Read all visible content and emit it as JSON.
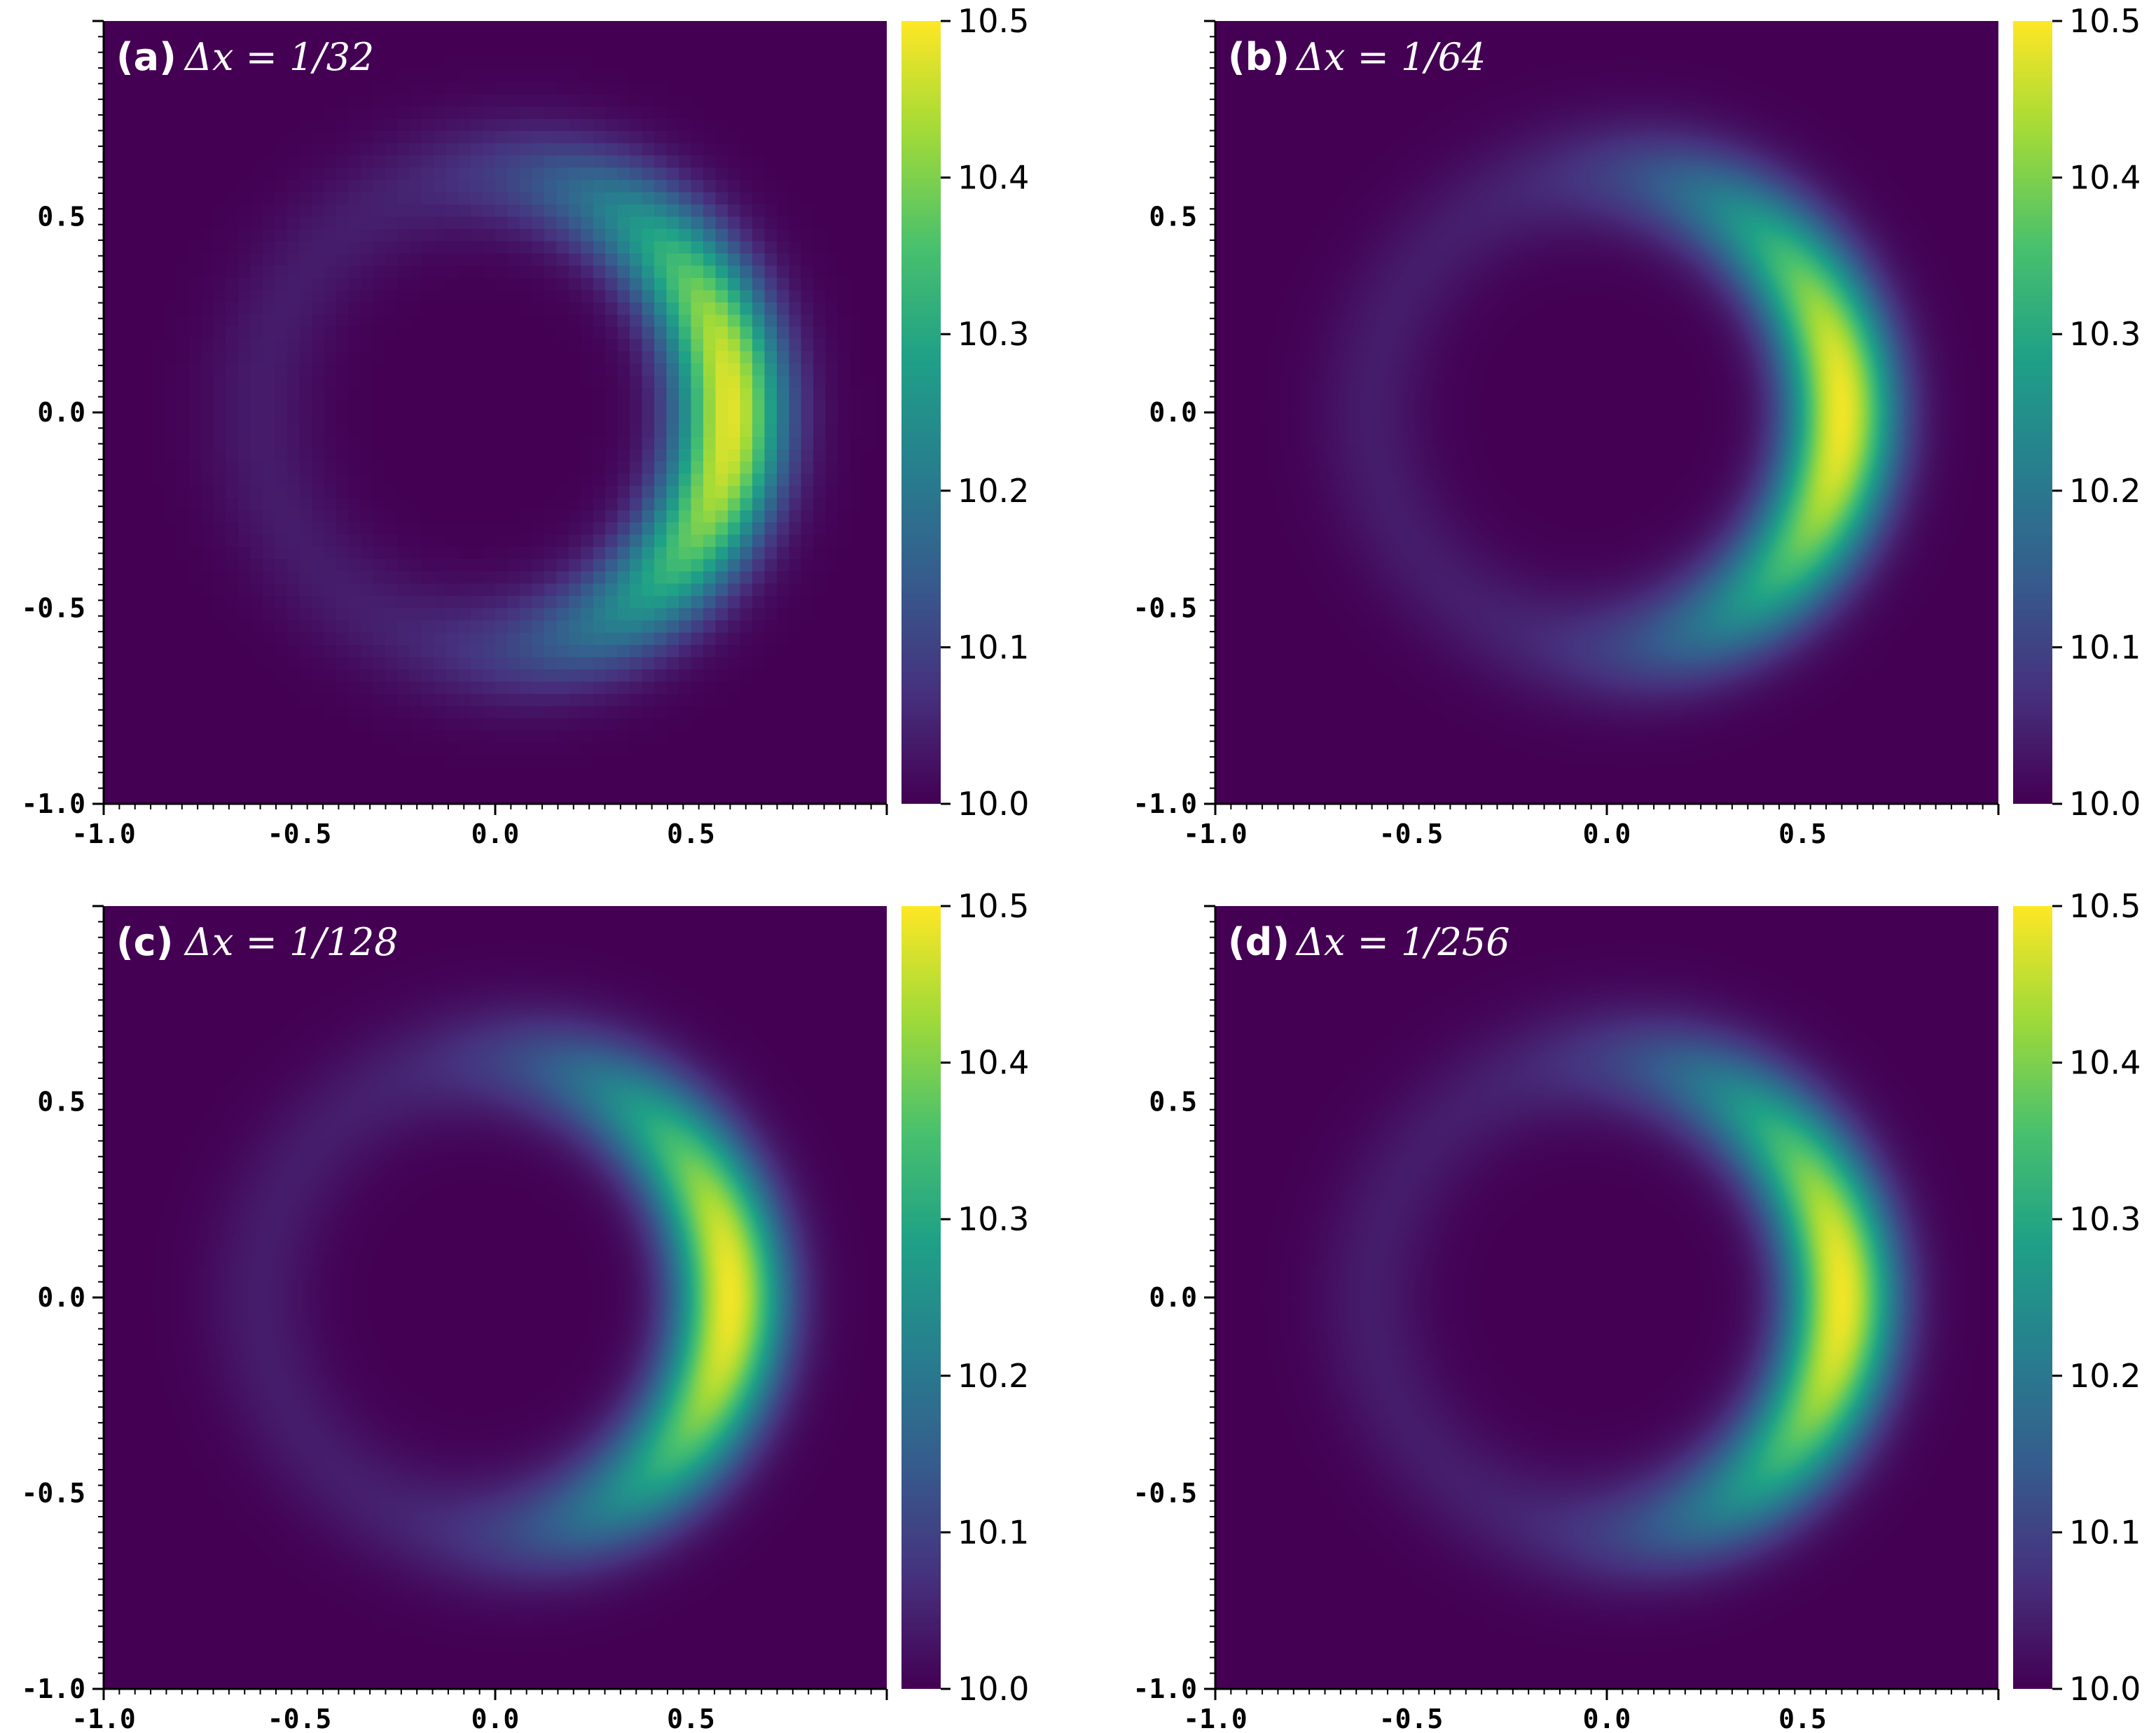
{
  "chart_data": [
    {
      "type": "heatmap",
      "panel_label": "(a)",
      "title": "Δx = 1/32",
      "grid_spacing": "1/32",
      "xlim": [
        -1.0,
        1.0
      ],
      "ylim": [
        -1.0,
        1.0
      ],
      "x_ticks": [
        "-1.0",
        "-0.5",
        "0.0",
        "0.5"
      ],
      "y_ticks": [
        "-1.0",
        "-0.5",
        "0.0",
        "0.5"
      ],
      "colorbar": {
        "min": 10.0,
        "max": 10.5,
        "ticks": [
          "10.0",
          "10.1",
          "10.2",
          "10.3",
          "10.4",
          "10.5"
        ],
        "colormap": "viridis"
      },
      "field": {
        "background": 10.0,
        "ring_center": [
          0.0,
          0.0
        ],
        "ring_radius": 0.6,
        "ring_width": 0.14,
        "ring_base": 0.08,
        "peak_value": 10.48,
        "peak_location": [
          0.6,
          0.0
        ]
      }
    },
    {
      "type": "heatmap",
      "panel_label": "(b)",
      "title": "Δx = 1/64",
      "grid_spacing": "1/64",
      "xlim": [
        -1.0,
        1.0
      ],
      "ylim": [
        -1.0,
        1.0
      ],
      "x_ticks": [
        "-1.0",
        "-0.5",
        "0.0",
        "0.5"
      ],
      "y_ticks": [
        "-1.0",
        "-0.5",
        "0.0",
        "0.5"
      ],
      "colorbar": {
        "min": 10.0,
        "max": 10.5,
        "ticks": [
          "10.0",
          "10.1",
          "10.2",
          "10.3",
          "10.4",
          "10.5"
        ],
        "colormap": "viridis"
      },
      "field": {
        "background": 10.0,
        "ring_center": [
          0.0,
          0.0
        ],
        "ring_radius": 0.6,
        "ring_width": 0.14,
        "ring_base": 0.08,
        "peak_value": 10.49,
        "peak_location": [
          0.6,
          0.0
        ]
      }
    },
    {
      "type": "heatmap",
      "panel_label": "(c)",
      "title": "Δx = 1/128",
      "grid_spacing": "1/128",
      "xlim": [
        -1.0,
        1.0
      ],
      "ylim": [
        -1.0,
        1.0
      ],
      "x_ticks": [
        "-1.0",
        "-0.5",
        "0.0",
        "0.5"
      ],
      "y_ticks": [
        "-1.0",
        "-0.5",
        "0.0",
        "0.5"
      ],
      "colorbar": {
        "min": 10.0,
        "max": 10.5,
        "ticks": [
          "10.0",
          "10.1",
          "10.2",
          "10.3",
          "10.4",
          "10.5"
        ],
        "colormap": "viridis"
      },
      "field": {
        "background": 10.0,
        "ring_center": [
          0.0,
          0.0
        ],
        "ring_radius": 0.6,
        "ring_width": 0.14,
        "ring_base": 0.08,
        "peak_value": 10.49,
        "peak_location": [
          0.6,
          0.0
        ]
      }
    },
    {
      "type": "heatmap",
      "panel_label": "(d)",
      "title": "Δx = 1/256",
      "grid_spacing": "1/256",
      "xlim": [
        -1.0,
        1.0
      ],
      "ylim": [
        -1.0,
        1.0
      ],
      "x_ticks": [
        "-1.0",
        "-0.5",
        "0.0",
        "0.5"
      ],
      "y_ticks": [
        "-1.0",
        "-0.5",
        "0.0",
        "0.5"
      ],
      "colorbar": {
        "min": 10.0,
        "max": 10.5,
        "ticks": [
          "10.0",
          "10.1",
          "10.2",
          "10.3",
          "10.4",
          "10.5"
        ],
        "colormap": "viridis"
      },
      "field": {
        "background": 10.0,
        "ring_center": [
          0.0,
          0.0
        ],
        "ring_radius": 0.6,
        "ring_width": 0.14,
        "ring_base": 0.08,
        "peak_value": 10.49,
        "peak_location": [
          0.6,
          0.0
        ]
      }
    }
  ],
  "colormap_stops": [
    "#440154",
    "#46327e",
    "#365c8d",
    "#277f8e",
    "#1fa187",
    "#4ac16d",
    "#a0da39",
    "#fde725"
  ]
}
